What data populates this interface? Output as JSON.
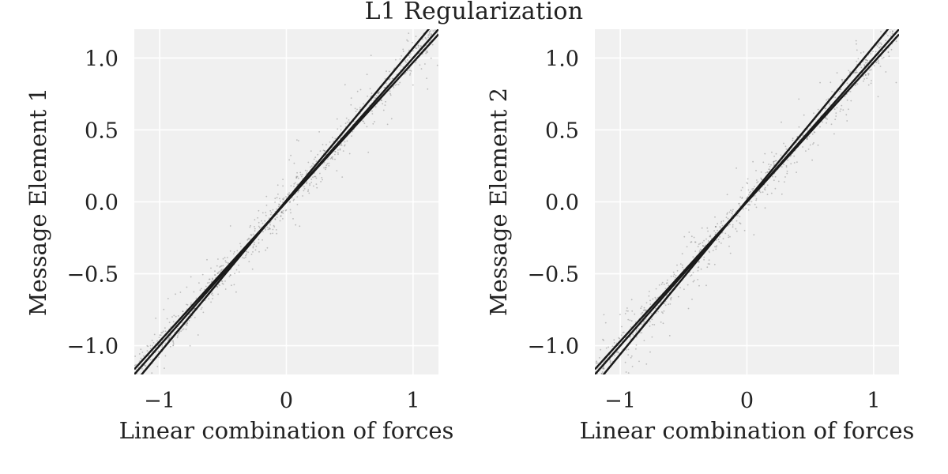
{
  "figure": {
    "title": "L1 Regularization",
    "background": "#ffffff",
    "plot_background": "#f0f0f0",
    "grid_color": "#ffffff",
    "point_color": "#555555",
    "line_color": "#1a1a1a"
  },
  "chart_data": [
    {
      "type": "scatter",
      "title": "",
      "xlabel": "Linear combination of forces",
      "ylabel": "Message Element 1",
      "xlim": [
        -1.2,
        1.2
      ],
      "ylim": [
        -1.2,
        1.2
      ],
      "grid": true,
      "xticks": [
        -1,
        0,
        1
      ],
      "xtick_labels": [
        "−1",
        "0",
        "1"
      ],
      "yticks": [
        1.0,
        0.5,
        0.0,
        -0.5,
        -1.0
      ],
      "ytick_labels": [
        "1.0",
        "0.5",
        "0.0",
        "−0.5",
        "−1.0"
      ],
      "fit_lines": [
        {
          "slope": 1.0,
          "intercept": 0.0
        },
        {
          "slope": 1.06,
          "intercept": 0.01
        },
        {
          "slope": 0.97,
          "intercept": 0.0
        }
      ],
      "scatter_trend": {
        "slope": 1.0,
        "intercept": 0.0,
        "spread": 0.05,
        "count": 900
      }
    },
    {
      "type": "scatter",
      "title": "",
      "xlabel": "Linear combination of forces",
      "ylabel": "Message Element 2",
      "xlim": [
        -1.2,
        1.2
      ],
      "ylim": [
        -1.2,
        1.2
      ],
      "grid": true,
      "xticks": [
        -1,
        0,
        1
      ],
      "xtick_labels": [
        "−1",
        "0",
        "1"
      ],
      "yticks": [
        1.0,
        0.5,
        0.0,
        -0.5,
        -1.0
      ],
      "ytick_labels": [
        "1.0",
        "0.5",
        "0.0",
        "−0.5",
        "−1.0"
      ],
      "fit_lines": [
        {
          "slope": 1.0,
          "intercept": 0.0
        },
        {
          "slope": 1.07,
          "intercept": 0.01
        },
        {
          "slope": 0.97,
          "intercept": 0.0
        }
      ],
      "scatter_trend": {
        "slope": 1.0,
        "intercept": 0.0,
        "spread": 0.05,
        "count": 900
      }
    }
  ]
}
